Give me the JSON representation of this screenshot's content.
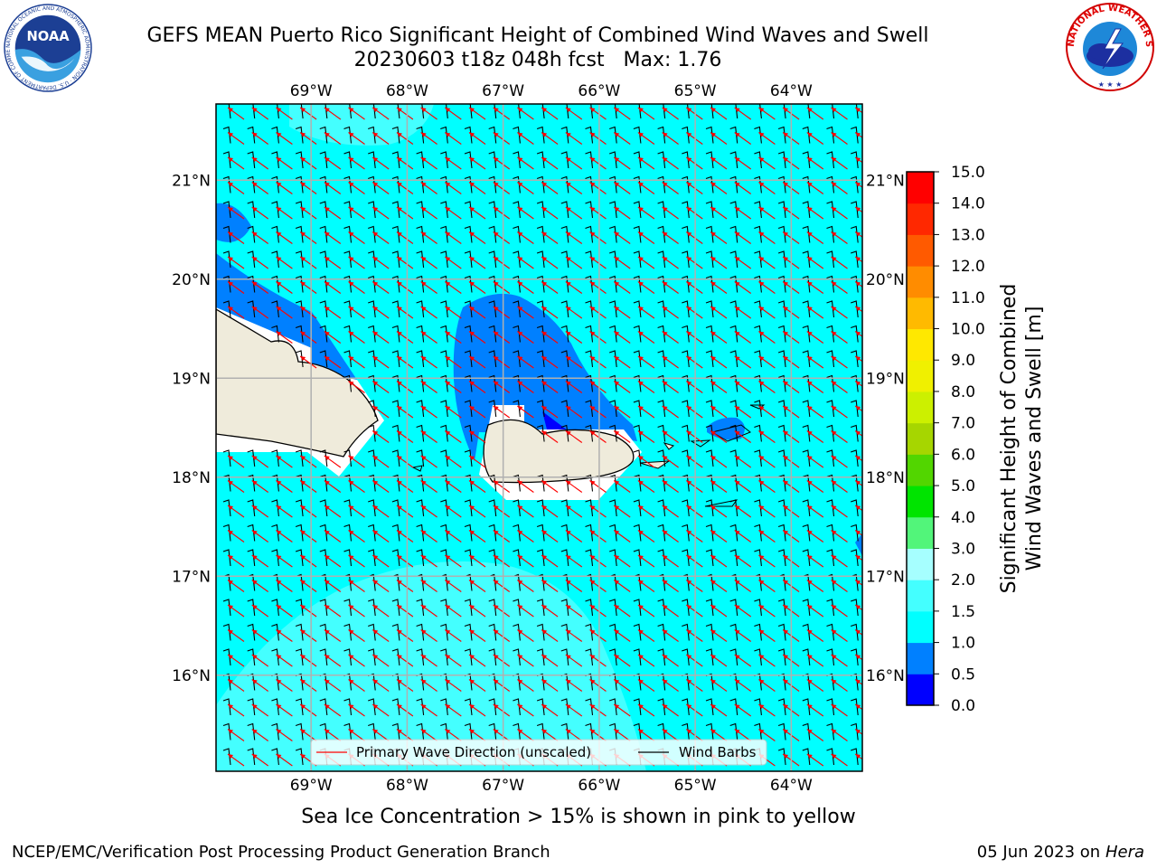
{
  "header": {
    "title_line1": "GEFS MEAN Puerto Rico Significant Height of Combined Wind Waves and Swell",
    "title_line2": "20230603 t18z 048h fcst   Max: 1.76"
  },
  "logos": {
    "noaa": {
      "text": "NOAA",
      "ring_text": "NATIONAL OCEANIC AND ATMOSPHERIC ADMINISTRATION · U.S. DEPARTMENT OF COMMERCE"
    },
    "nws": {
      "ring_text": "NATIONAL WEATHER SERVICE"
    }
  },
  "map": {
    "lon_labels": [
      "69°W",
      "68°W",
      "67°W",
      "66°W",
      "65°W",
      "64°W"
    ],
    "lat_labels": [
      "21°N",
      "20°N",
      "19°N",
      "18°N",
      "17°N",
      "16°N"
    ],
    "lon_values": [
      -69,
      -68,
      -67,
      -66,
      -65,
      -64
    ],
    "lat_values": [
      21,
      20,
      19,
      18,
      17,
      16
    ],
    "extent": {
      "lon_min": -69.99,
      "lon_max": -63.26,
      "lat_min": 15.03,
      "lat_max": 21.77
    },
    "field": "Significant Height of Combined Wind Waves and Swell",
    "max_value": 1.76,
    "legend": {
      "wave_label": "Primary Wave Direction (unscaled)",
      "barb_label": "Wind Barbs",
      "wave_color": "#ff0000",
      "barb_color": "#000000"
    }
  },
  "colorbar": {
    "label_line1": "Significant Height of Combined",
    "label_line2": "Wind Waves and Swell [m]",
    "ticks": [
      "0.0",
      "0.5",
      "1.0",
      "1.5",
      "2.0",
      "3.0",
      "4.0",
      "5.0",
      "6.0",
      "7.0",
      "8.0",
      "9.0",
      "10.0",
      "11.0",
      "12.0",
      "13.0",
      "14.0",
      "15.0"
    ],
    "colors": [
      "#0000ff",
      "#0080ff",
      "#00ffff",
      "#44ffff",
      "#a6ffff",
      "#52f57a",
      "#00e400",
      "#52d600",
      "#a6d600",
      "#ccf000",
      "#f0f000",
      "#ffe800",
      "#ffba00",
      "#ff8c00",
      "#ff5a00",
      "#ff2800",
      "#ff0000"
    ]
  },
  "subtitle": "Sea Ice Concentration > 15% is shown in pink to yellow",
  "footer": {
    "left": "NCEP/EMC/Verification Post Processing Product Generation Branch",
    "right_date": "05 Jun 2023 on",
    "right_host": "Hera"
  }
}
